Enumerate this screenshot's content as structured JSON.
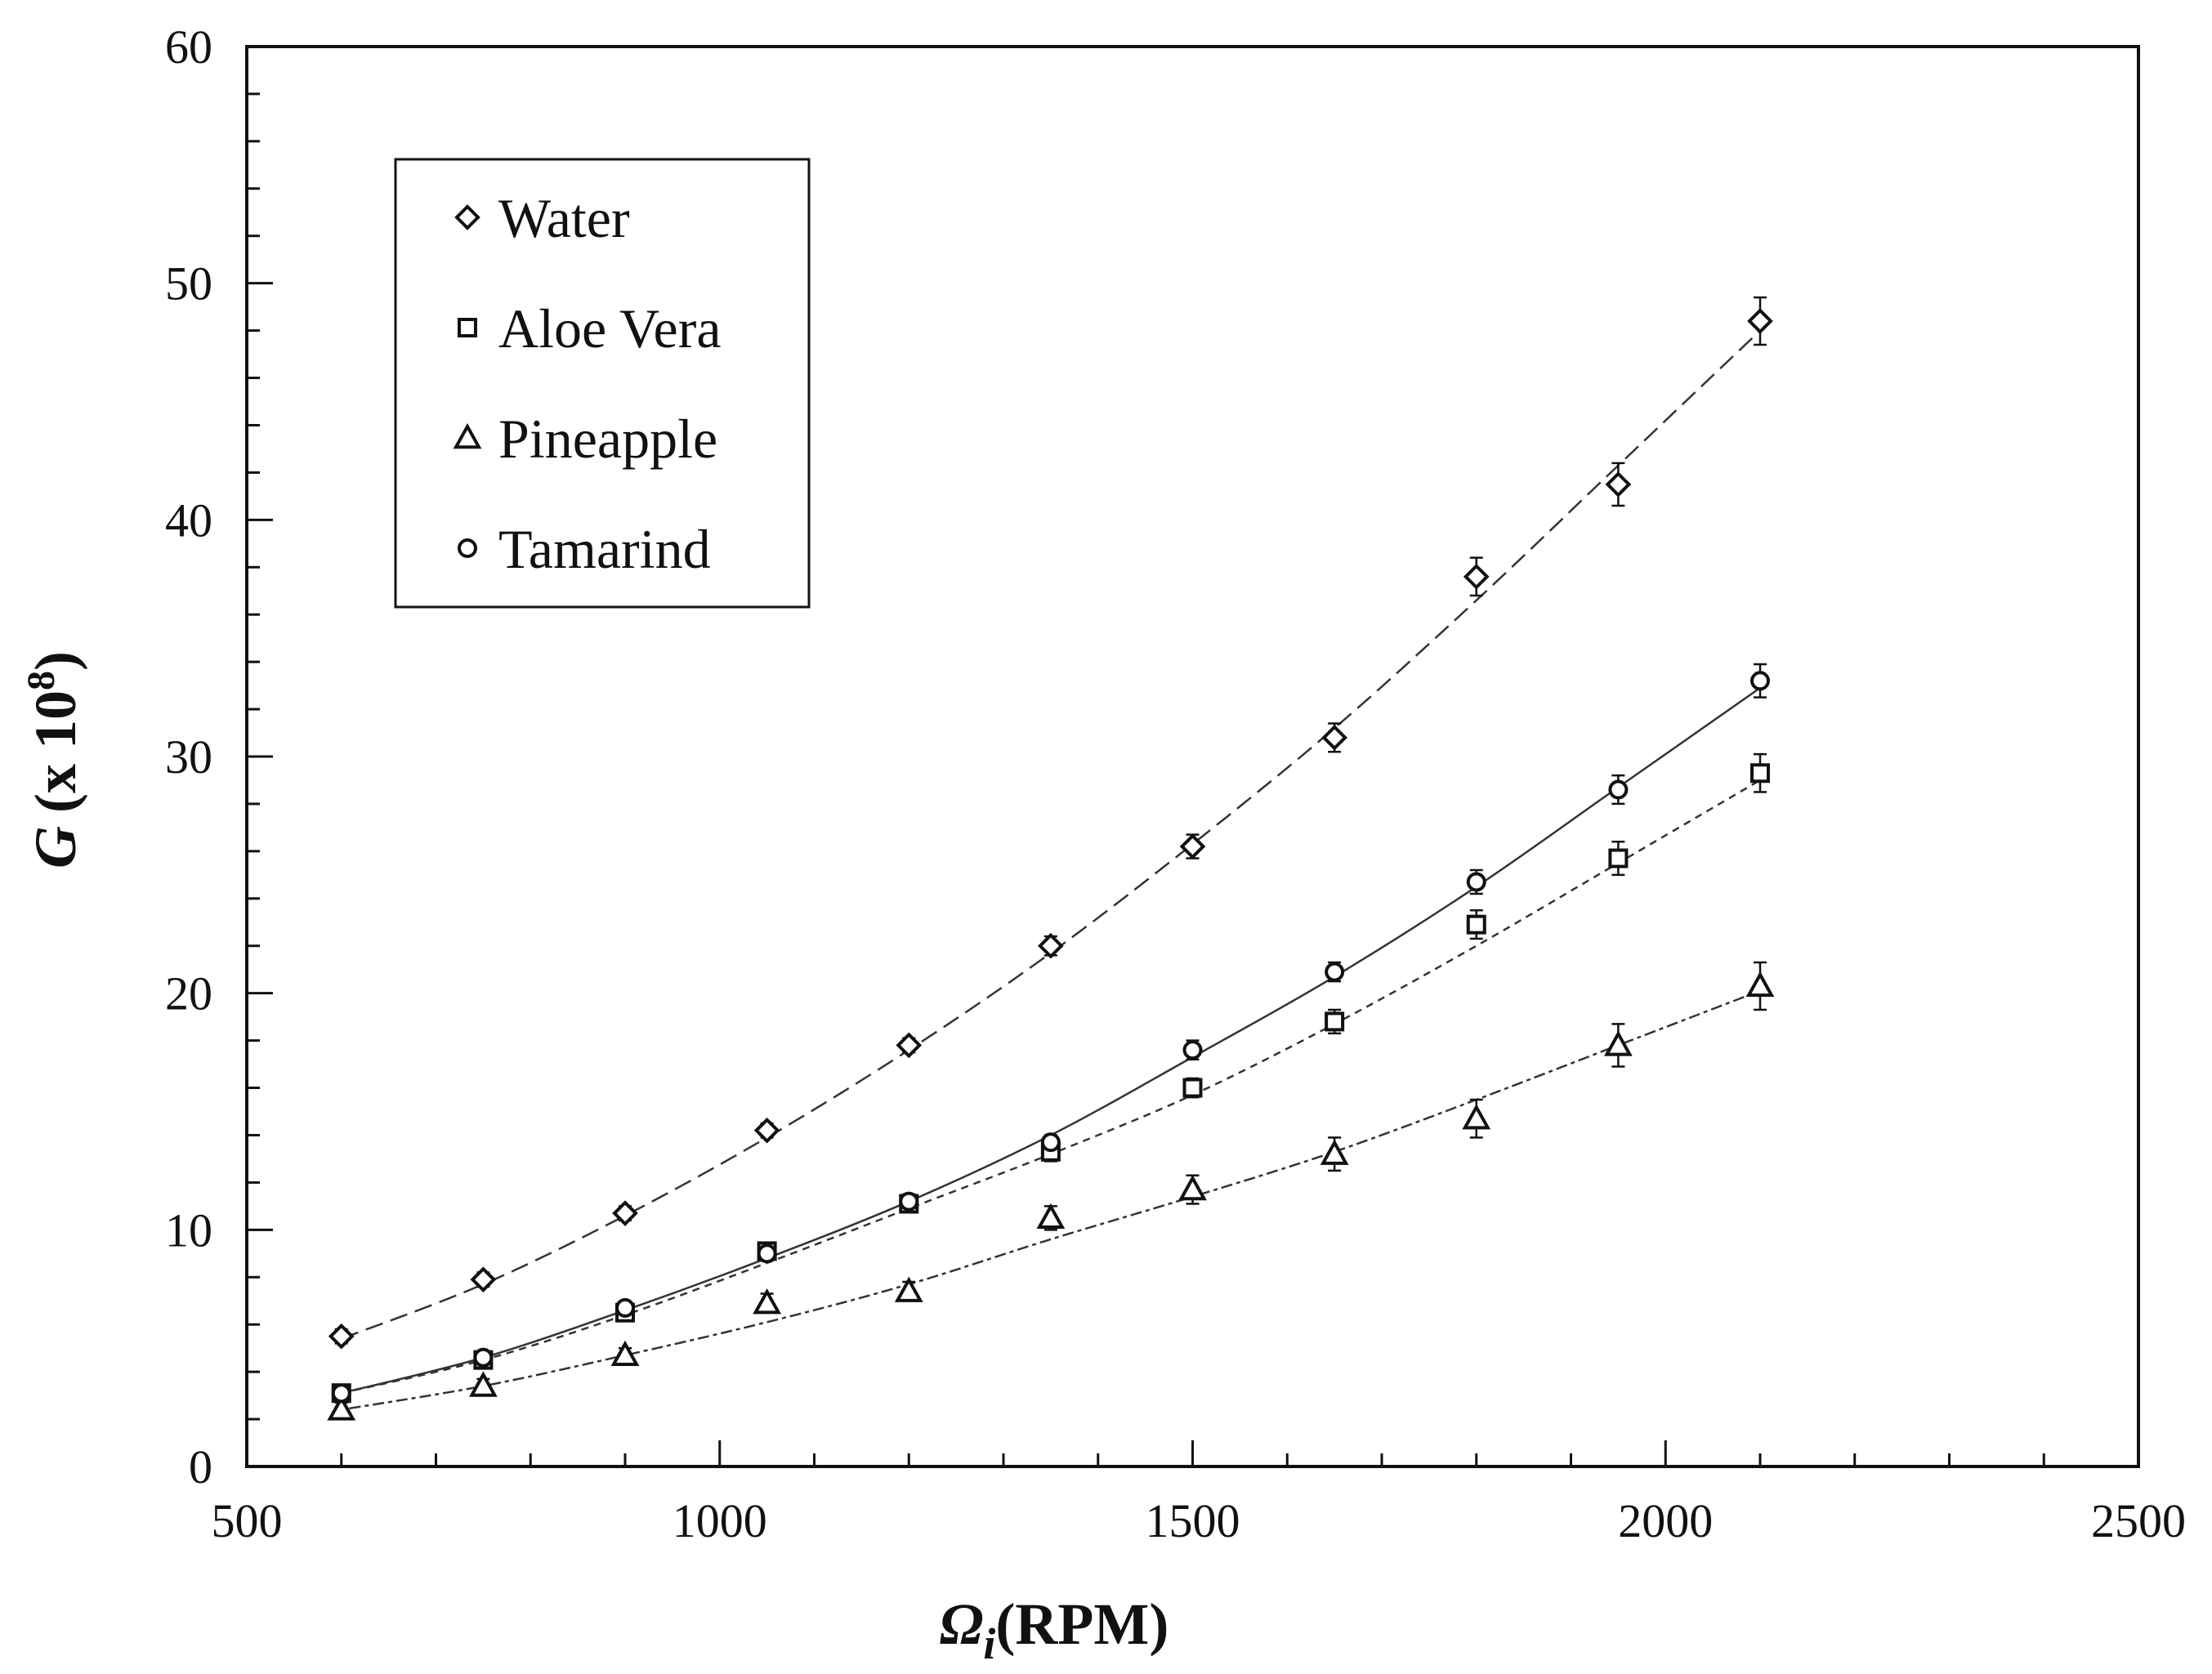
{
  "chart_data": {
    "type": "scatter",
    "title": "",
    "xlabel": {
      "symbol": "Ω",
      "subscript": "i",
      "unit": "(RPM)"
    },
    "ylabel": {
      "symbol": "G",
      "prefix": "(x 10",
      "exponent": "8",
      "suffix": ")"
    },
    "xlim": [
      500,
      2500
    ],
    "ylim": [
      0,
      60
    ],
    "x_major_ticks": [
      500,
      1000,
      1500,
      2000,
      2500
    ],
    "x_tick_labels": [
      "500",
      "1000",
      "1500",
      "2000",
      "2500"
    ],
    "x_minor_step": 100,
    "y_major_ticks": [
      0,
      10,
      20,
      30,
      40,
      50,
      60
    ],
    "y_tick_labels": [
      "0",
      "10",
      "20",
      "30",
      "40",
      "50",
      "60"
    ],
    "y_minor_step": 2,
    "grid": false,
    "legend_position": "top-left",
    "x": [
      600,
      750,
      900,
      1050,
      1200,
      1350,
      1500,
      1650,
      1800,
      1950,
      2100
    ],
    "series": [
      {
        "name": "Water",
        "marker": "diamond",
        "values": [
          5.5,
          7.9,
          10.7,
          14.2,
          17.8,
          22.0,
          26.2,
          30.8,
          37.6,
          41.5,
          48.4
        ],
        "error": [
          0.3,
          0.3,
          0.3,
          0.3,
          0.3,
          0.4,
          0.5,
          0.6,
          0.8,
          0.9,
          1.0
        ],
        "fit": [
          5.4,
          7.7,
          10.6,
          13.9,
          17.6,
          21.7,
          26.3,
          31.2,
          36.6,
          42.3,
          48.0
        ],
        "fit_dash": "22,10"
      },
      {
        "name": "Aloe Vera",
        "marker": "square",
        "values": [
          3.1,
          4.5,
          6.5,
          9.1,
          11.1,
          13.3,
          16.0,
          18.8,
          22.9,
          25.7,
          29.3
        ],
        "error": [
          0.2,
          0.2,
          0.2,
          0.3,
          0.3,
          0.4,
          0.4,
          0.5,
          0.6,
          0.7,
          0.8
        ],
        "fit": [
          3.1,
          4.5,
          6.4,
          8.6,
          10.9,
          13.2,
          15.7,
          18.7,
          22.0,
          25.5,
          29.0
        ],
        "fit_dash": "9,7"
      },
      {
        "name": "Pineapple",
        "marker": "triangle",
        "values": [
          2.4,
          3.4,
          4.7,
          6.9,
          7.4,
          10.5,
          11.7,
          13.2,
          14.7,
          17.8,
          20.3
        ],
        "error": [
          0.3,
          0.3,
          0.3,
          0.4,
          0.4,
          0.5,
          0.6,
          0.7,
          0.8,
          0.9,
          1.0
        ],
        "fit": [
          2.4,
          3.4,
          4.7,
          6.1,
          7.7,
          9.6,
          11.4,
          13.3,
          15.5,
          17.8,
          20.1
        ],
        "fit_dash": "5,5,14,5"
      },
      {
        "name": "Tamarind",
        "marker": "circle",
        "values": [
          3.1,
          4.6,
          6.7,
          9.0,
          11.2,
          13.7,
          17.6,
          20.9,
          24.7,
          28.6,
          33.2
        ],
        "error": [
          0.2,
          0.2,
          0.2,
          0.3,
          0.3,
          0.3,
          0.4,
          0.4,
          0.5,
          0.6,
          0.7
        ],
        "fit": [
          3.1,
          4.6,
          6.6,
          8.8,
          11.2,
          14.0,
          17.3,
          20.7,
          24.5,
          28.7,
          32.9
        ],
        "fit_dash": ""
      }
    ]
  }
}
